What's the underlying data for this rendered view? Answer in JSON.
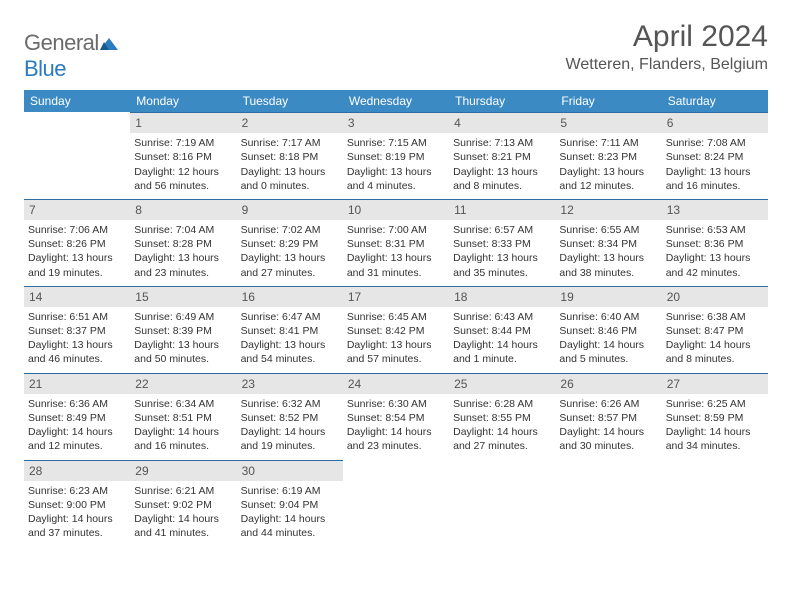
{
  "brand": {
    "general": "General",
    "blue": "Blue"
  },
  "title": "April 2024",
  "location": "Wetteren, Flanders, Belgium",
  "colors": {
    "header_bg": "#3b8ac4",
    "header_text": "#ffffff",
    "daynum_bg": "#e6e6e6",
    "daynum_text": "#555555",
    "rule": "#2e6da4",
    "logo_gray": "#6b6b6b",
    "logo_blue": "#2b7bbf"
  },
  "weekdays": [
    "Sunday",
    "Monday",
    "Tuesday",
    "Wednesday",
    "Thursday",
    "Friday",
    "Saturday"
  ],
  "weeks": [
    [
      null,
      {
        "n": "1",
        "sr": "Sunrise: 7:19 AM",
        "ss": "Sunset: 8:16 PM",
        "d1": "Daylight: 12 hours",
        "d2": "and 56 minutes."
      },
      {
        "n": "2",
        "sr": "Sunrise: 7:17 AM",
        "ss": "Sunset: 8:18 PM",
        "d1": "Daylight: 13 hours",
        "d2": "and 0 minutes."
      },
      {
        "n": "3",
        "sr": "Sunrise: 7:15 AM",
        "ss": "Sunset: 8:19 PM",
        "d1": "Daylight: 13 hours",
        "d2": "and 4 minutes."
      },
      {
        "n": "4",
        "sr": "Sunrise: 7:13 AM",
        "ss": "Sunset: 8:21 PM",
        "d1": "Daylight: 13 hours",
        "d2": "and 8 minutes."
      },
      {
        "n": "5",
        "sr": "Sunrise: 7:11 AM",
        "ss": "Sunset: 8:23 PM",
        "d1": "Daylight: 13 hours",
        "d2": "and 12 minutes."
      },
      {
        "n": "6",
        "sr": "Sunrise: 7:08 AM",
        "ss": "Sunset: 8:24 PM",
        "d1": "Daylight: 13 hours",
        "d2": "and 16 minutes."
      }
    ],
    [
      {
        "n": "7",
        "sr": "Sunrise: 7:06 AM",
        "ss": "Sunset: 8:26 PM",
        "d1": "Daylight: 13 hours",
        "d2": "and 19 minutes."
      },
      {
        "n": "8",
        "sr": "Sunrise: 7:04 AM",
        "ss": "Sunset: 8:28 PM",
        "d1": "Daylight: 13 hours",
        "d2": "and 23 minutes."
      },
      {
        "n": "9",
        "sr": "Sunrise: 7:02 AM",
        "ss": "Sunset: 8:29 PM",
        "d1": "Daylight: 13 hours",
        "d2": "and 27 minutes."
      },
      {
        "n": "10",
        "sr": "Sunrise: 7:00 AM",
        "ss": "Sunset: 8:31 PM",
        "d1": "Daylight: 13 hours",
        "d2": "and 31 minutes."
      },
      {
        "n": "11",
        "sr": "Sunrise: 6:57 AM",
        "ss": "Sunset: 8:33 PM",
        "d1": "Daylight: 13 hours",
        "d2": "and 35 minutes."
      },
      {
        "n": "12",
        "sr": "Sunrise: 6:55 AM",
        "ss": "Sunset: 8:34 PM",
        "d1": "Daylight: 13 hours",
        "d2": "and 38 minutes."
      },
      {
        "n": "13",
        "sr": "Sunrise: 6:53 AM",
        "ss": "Sunset: 8:36 PM",
        "d1": "Daylight: 13 hours",
        "d2": "and 42 minutes."
      }
    ],
    [
      {
        "n": "14",
        "sr": "Sunrise: 6:51 AM",
        "ss": "Sunset: 8:37 PM",
        "d1": "Daylight: 13 hours",
        "d2": "and 46 minutes."
      },
      {
        "n": "15",
        "sr": "Sunrise: 6:49 AM",
        "ss": "Sunset: 8:39 PM",
        "d1": "Daylight: 13 hours",
        "d2": "and 50 minutes."
      },
      {
        "n": "16",
        "sr": "Sunrise: 6:47 AM",
        "ss": "Sunset: 8:41 PM",
        "d1": "Daylight: 13 hours",
        "d2": "and 54 minutes."
      },
      {
        "n": "17",
        "sr": "Sunrise: 6:45 AM",
        "ss": "Sunset: 8:42 PM",
        "d1": "Daylight: 13 hours",
        "d2": "and 57 minutes."
      },
      {
        "n": "18",
        "sr": "Sunrise: 6:43 AM",
        "ss": "Sunset: 8:44 PM",
        "d1": "Daylight: 14 hours",
        "d2": "and 1 minute."
      },
      {
        "n": "19",
        "sr": "Sunrise: 6:40 AM",
        "ss": "Sunset: 8:46 PM",
        "d1": "Daylight: 14 hours",
        "d2": "and 5 minutes."
      },
      {
        "n": "20",
        "sr": "Sunrise: 6:38 AM",
        "ss": "Sunset: 8:47 PM",
        "d1": "Daylight: 14 hours",
        "d2": "and 8 minutes."
      }
    ],
    [
      {
        "n": "21",
        "sr": "Sunrise: 6:36 AM",
        "ss": "Sunset: 8:49 PM",
        "d1": "Daylight: 14 hours",
        "d2": "and 12 minutes."
      },
      {
        "n": "22",
        "sr": "Sunrise: 6:34 AM",
        "ss": "Sunset: 8:51 PM",
        "d1": "Daylight: 14 hours",
        "d2": "and 16 minutes."
      },
      {
        "n": "23",
        "sr": "Sunrise: 6:32 AM",
        "ss": "Sunset: 8:52 PM",
        "d1": "Daylight: 14 hours",
        "d2": "and 19 minutes."
      },
      {
        "n": "24",
        "sr": "Sunrise: 6:30 AM",
        "ss": "Sunset: 8:54 PM",
        "d1": "Daylight: 14 hours",
        "d2": "and 23 minutes."
      },
      {
        "n": "25",
        "sr": "Sunrise: 6:28 AM",
        "ss": "Sunset: 8:55 PM",
        "d1": "Daylight: 14 hours",
        "d2": "and 27 minutes."
      },
      {
        "n": "26",
        "sr": "Sunrise: 6:26 AM",
        "ss": "Sunset: 8:57 PM",
        "d1": "Daylight: 14 hours",
        "d2": "and 30 minutes."
      },
      {
        "n": "27",
        "sr": "Sunrise: 6:25 AM",
        "ss": "Sunset: 8:59 PM",
        "d1": "Daylight: 14 hours",
        "d2": "and 34 minutes."
      }
    ],
    [
      {
        "n": "28",
        "sr": "Sunrise: 6:23 AM",
        "ss": "Sunset: 9:00 PM",
        "d1": "Daylight: 14 hours",
        "d2": "and 37 minutes."
      },
      {
        "n": "29",
        "sr": "Sunrise: 6:21 AM",
        "ss": "Sunset: 9:02 PM",
        "d1": "Daylight: 14 hours",
        "d2": "and 41 minutes."
      },
      {
        "n": "30",
        "sr": "Sunrise: 6:19 AM",
        "ss": "Sunset: 9:04 PM",
        "d1": "Daylight: 14 hours",
        "d2": "and 44 minutes."
      },
      null,
      null,
      null,
      null
    ]
  ]
}
